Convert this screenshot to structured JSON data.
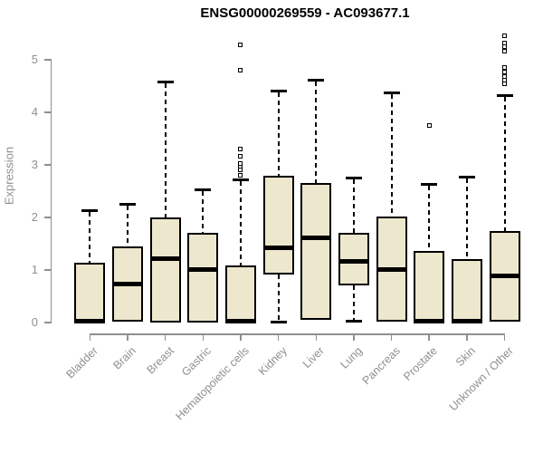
{
  "title": "ENSG00000269559 - AC093677.1",
  "colors": {
    "box_fill": "#EDE7CD",
    "box_stroke": "#000000",
    "axis_gray": "#8f8f8f",
    "title_color": "#000000",
    "background": "#ffffff"
  },
  "chart_data": {
    "type": "boxplot",
    "title": "ENSG00000269559 - AC093677.1",
    "xlabel": "",
    "ylabel": "Expression",
    "ylim": [
      0,
      5.5
    ],
    "yticks": [
      0,
      1,
      2,
      3,
      4,
      5
    ],
    "grid": false,
    "legend": false,
    "categories": [
      "Bladder",
      "Brain",
      "Breast",
      "Gastric",
      "Hematopoietic cells",
      "Kidney",
      "Liver",
      "Lung",
      "Pancreas",
      "Prostate",
      "Skin",
      "Unknown / Other"
    ],
    "series": [
      {
        "label": "Bladder",
        "whisker_low": null,
        "q1": 0,
        "median": 0.03,
        "q3": 1.13,
        "whisker_high": 2.13,
        "outliers": []
      },
      {
        "label": "Brain",
        "whisker_low": null,
        "q1": 0.02,
        "median": 0.74,
        "q3": 1.45,
        "whisker_high": 2.26,
        "outliers": []
      },
      {
        "label": "Breast",
        "whisker_low": null,
        "q1": 0,
        "median": 1.22,
        "q3": 2.0,
        "whisker_high": 4.58,
        "outliers": []
      },
      {
        "label": "Gastric",
        "whisker_low": null,
        "q1": 0,
        "median": 1.01,
        "q3": 1.71,
        "whisker_high": 2.53,
        "outliers": []
      },
      {
        "label": "Hematopoietic cells",
        "whisker_low": null,
        "q1": 0,
        "median": 0.03,
        "q3": 1.09,
        "whisker_high": 2.72,
        "outliers": [
          2.81,
          2.91,
          2.97,
          3.03,
          3.16,
          3.3,
          4.8,
          5.28
        ]
      },
      {
        "label": "Kidney",
        "whisker_low": 0.02,
        "q1": 0.91,
        "median": 1.43,
        "q3": 2.79,
        "whisker_high": 4.41,
        "outliers": []
      },
      {
        "label": "Liver",
        "whisker_low": null,
        "q1": 0.05,
        "median": 1.62,
        "q3": 2.66,
        "whisker_high": 4.62,
        "outliers": []
      },
      {
        "label": "Lung",
        "whisker_low": 0.03,
        "q1": 0.7,
        "median": 1.16,
        "q3": 1.7,
        "whisker_high": 2.76,
        "outliers": []
      },
      {
        "label": "Pancreas",
        "whisker_low": null,
        "q1": 0.02,
        "median": 1.01,
        "q3": 2.02,
        "whisker_high": 4.38,
        "outliers": []
      },
      {
        "label": "Prostate",
        "whisker_low": null,
        "q1": 0,
        "median": 0.03,
        "q3": 1.36,
        "whisker_high": 2.64,
        "outliers": [
          3.75
        ]
      },
      {
        "label": "Skin",
        "whisker_low": null,
        "q1": 0,
        "median": 0.03,
        "q3": 1.21,
        "whisker_high": 2.78,
        "outliers": []
      },
      {
        "label": "Unknown / Other",
        "whisker_low": null,
        "q1": 0.02,
        "median": 0.89,
        "q3": 1.74,
        "whisker_high": 4.33,
        "outliers": [
          4.55,
          4.61,
          4.68,
          4.76,
          4.86,
          5.17,
          5.25,
          5.32,
          5.45
        ]
      }
    ]
  }
}
